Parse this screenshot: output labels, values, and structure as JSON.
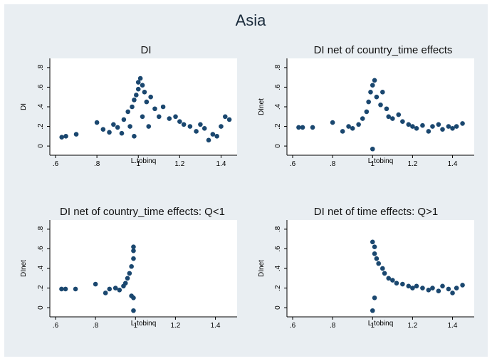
{
  "figure": {
    "title": "Asia"
  },
  "colors": {
    "outer_bg": "#e9eef2",
    "plot_bg": "#ffffff",
    "marker": "#1a476f",
    "axis": "#000000"
  },
  "chart_data": [
    {
      "type": "scatter",
      "title": "DI",
      "xlabel": "L.tobinq",
      "ylabel": "DI",
      "xlim": [
        0.6,
        1.45
      ],
      "ylim": [
        -0.05,
        0.85
      ],
      "xticks": [
        0.6,
        0.8,
        1,
        1.2,
        1.4
      ],
      "xtick_labels": [
        ".6",
        ".8",
        "1",
        "1.2",
        "1.4"
      ],
      "yticks": [
        0,
        0.2,
        0.4,
        0.6,
        0.8
      ],
      "ytick_labels": [
        "0",
        ".2",
        ".4",
        ".6",
        ".8"
      ],
      "grid": false,
      "series": [
        {
          "values_note": "",
          "points": [
            [
              0.63,
              0.09
            ],
            [
              0.65,
              0.1
            ],
            [
              0.7,
              0.12
            ],
            [
              0.8,
              0.24
            ],
            [
              0.83,
              0.17
            ],
            [
              0.86,
              0.14
            ],
            [
              0.88,
              0.22
            ],
            [
              0.9,
              0.19
            ],
            [
              0.92,
              0.13
            ],
            [
              0.93,
              0.27
            ],
            [
              0.95,
              0.35
            ],
            [
              0.96,
              0.2
            ],
            [
              0.97,
              0.4
            ],
            [
              0.98,
              0.47
            ],
            [
              0.98,
              0.1
            ],
            [
              0.99,
              0.52
            ],
            [
              1.0,
              0.58
            ],
            [
              1.0,
              0.65
            ],
            [
              1.01,
              0.69
            ],
            [
              1.02,
              0.62
            ],
            [
              1.02,
              0.3
            ],
            [
              1.03,
              0.55
            ],
            [
              1.04,
              0.45
            ],
            [
              1.05,
              0.2
            ],
            [
              1.06,
              0.5
            ],
            [
              1.08,
              0.38
            ],
            [
              1.1,
              0.3
            ],
            [
              1.12,
              0.4
            ],
            [
              1.15,
              0.28
            ],
            [
              1.18,
              0.3
            ],
            [
              1.2,
              0.25
            ],
            [
              1.22,
              0.22
            ],
            [
              1.25,
              0.2
            ],
            [
              1.28,
              0.15
            ],
            [
              1.3,
              0.22
            ],
            [
              1.32,
              0.18
            ],
            [
              1.34,
              0.06
            ],
            [
              1.36,
              0.12
            ],
            [
              1.38,
              0.1
            ],
            [
              1.4,
              0.2
            ],
            [
              1.42,
              0.3
            ],
            [
              1.44,
              0.27
            ]
          ]
        }
      ]
    },
    {
      "type": "scatter",
      "title": "DI net of country_time effects",
      "xlabel": "L.tobinq",
      "ylabel": "DInet",
      "xlim": [
        0.6,
        1.48
      ],
      "ylim": [
        -0.05,
        0.85
      ],
      "xticks": [
        0.6,
        0.8,
        1,
        1.2,
        1.4
      ],
      "xtick_labels": [
        ".6",
        ".8",
        "1",
        "1.2",
        "1.4"
      ],
      "yticks": [
        0,
        0.2,
        0.4,
        0.6,
        0.8
      ],
      "ytick_labels": [
        "0",
        ".2",
        ".4",
        ".6",
        ".8"
      ],
      "grid": false,
      "series": [
        {
          "points": [
            [
              0.63,
              0.19
            ],
            [
              0.65,
              0.19
            ],
            [
              0.7,
              0.19
            ],
            [
              0.8,
              0.24
            ],
            [
              0.85,
              0.15
            ],
            [
              0.88,
              0.2
            ],
            [
              0.9,
              0.18
            ],
            [
              0.93,
              0.22
            ],
            [
              0.95,
              0.28
            ],
            [
              0.97,
              0.35
            ],
            [
              0.98,
              0.45
            ],
            [
              0.99,
              0.55
            ],
            [
              1.0,
              0.62
            ],
            [
              1.01,
              0.67
            ],
            [
              1.0,
              -0.03
            ],
            [
              1.02,
              0.5
            ],
            [
              1.04,
              0.42
            ],
            [
              1.05,
              0.55
            ],
            [
              1.07,
              0.38
            ],
            [
              1.08,
              0.3
            ],
            [
              1.1,
              0.28
            ],
            [
              1.13,
              0.32
            ],
            [
              1.15,
              0.25
            ],
            [
              1.18,
              0.22
            ],
            [
              1.2,
              0.2
            ],
            [
              1.22,
              0.18
            ],
            [
              1.25,
              0.21
            ],
            [
              1.28,
              0.15
            ],
            [
              1.3,
              0.2
            ],
            [
              1.33,
              0.22
            ],
            [
              1.35,
              0.17
            ],
            [
              1.38,
              0.2
            ],
            [
              1.4,
              0.18
            ],
            [
              1.42,
              0.2
            ],
            [
              1.45,
              0.23
            ]
          ]
        }
      ]
    },
    {
      "type": "scatter",
      "title": "DI net of country_time effects: Q<1",
      "xlabel": "L.tobinq",
      "ylabel": "DInet",
      "xlim": [
        0.6,
        1.48
      ],
      "ylim": [
        -0.05,
        0.85
      ],
      "xticks": [
        0.6,
        0.8,
        1,
        1.2,
        1.4
      ],
      "xtick_labels": [
        ".6",
        ".8",
        "1",
        "1.2",
        "1.4"
      ],
      "yticks": [
        0,
        0.2,
        0.4,
        0.6,
        0.8
      ],
      "ytick_labels": [
        "0",
        ".2",
        ".4",
        ".6",
        ".8"
      ],
      "grid": false,
      "series": [
        {
          "points": [
            [
              0.63,
              0.19
            ],
            [
              0.65,
              0.19
            ],
            [
              0.7,
              0.19
            ],
            [
              0.8,
              0.24
            ],
            [
              0.85,
              0.15
            ],
            [
              0.87,
              0.19
            ],
            [
              0.9,
              0.2
            ],
            [
              0.92,
              0.18
            ],
            [
              0.94,
              0.22
            ],
            [
              0.95,
              0.25
            ],
            [
              0.96,
              0.3
            ],
            [
              0.97,
              0.35
            ],
            [
              0.98,
              0.42
            ],
            [
              0.99,
              0.5
            ],
            [
              0.99,
              0.58
            ],
            [
              0.99,
              0.62
            ],
            [
              0.99,
              -0.03
            ],
            [
              0.99,
              0.1
            ],
            [
              0.98,
              0.12
            ]
          ]
        }
      ]
    },
    {
      "type": "scatter",
      "title": "DI net of time effects: Q>1",
      "xlabel": "L.tobinq",
      "ylabel": "DInet",
      "xlim": [
        0.6,
        1.48
      ],
      "ylim": [
        -0.05,
        0.85
      ],
      "xticks": [
        0.6,
        0.8,
        1,
        1.2,
        1.4
      ],
      "xtick_labels": [
        ".6",
        ".8",
        "1",
        "1.2",
        "1.4"
      ],
      "yticks": [
        0,
        0.2,
        0.4,
        0.6,
        0.8
      ],
      "ytick_labels": [
        "0",
        ".2",
        ".4",
        ".6",
        ".8"
      ],
      "grid": false,
      "series": [
        {
          "points": [
            [
              1.0,
              0.67
            ],
            [
              1.01,
              0.62
            ],
            [
              1.01,
              0.55
            ],
            [
              1.02,
              0.5
            ],
            [
              1.0,
              -0.03
            ],
            [
              1.01,
              0.1
            ],
            [
              1.03,
              0.45
            ],
            [
              1.05,
              0.4
            ],
            [
              1.06,
              0.35
            ],
            [
              1.08,
              0.3
            ],
            [
              1.1,
              0.28
            ],
            [
              1.12,
              0.25
            ],
            [
              1.15,
              0.24
            ],
            [
              1.18,
              0.22
            ],
            [
              1.2,
              0.2
            ],
            [
              1.22,
              0.22
            ],
            [
              1.25,
              0.2
            ],
            [
              1.28,
              0.18
            ],
            [
              1.3,
              0.2
            ],
            [
              1.33,
              0.17
            ],
            [
              1.35,
              0.22
            ],
            [
              1.38,
              0.19
            ],
            [
              1.4,
              0.15
            ],
            [
              1.42,
              0.2
            ],
            [
              1.45,
              0.23
            ]
          ]
        }
      ]
    }
  ]
}
